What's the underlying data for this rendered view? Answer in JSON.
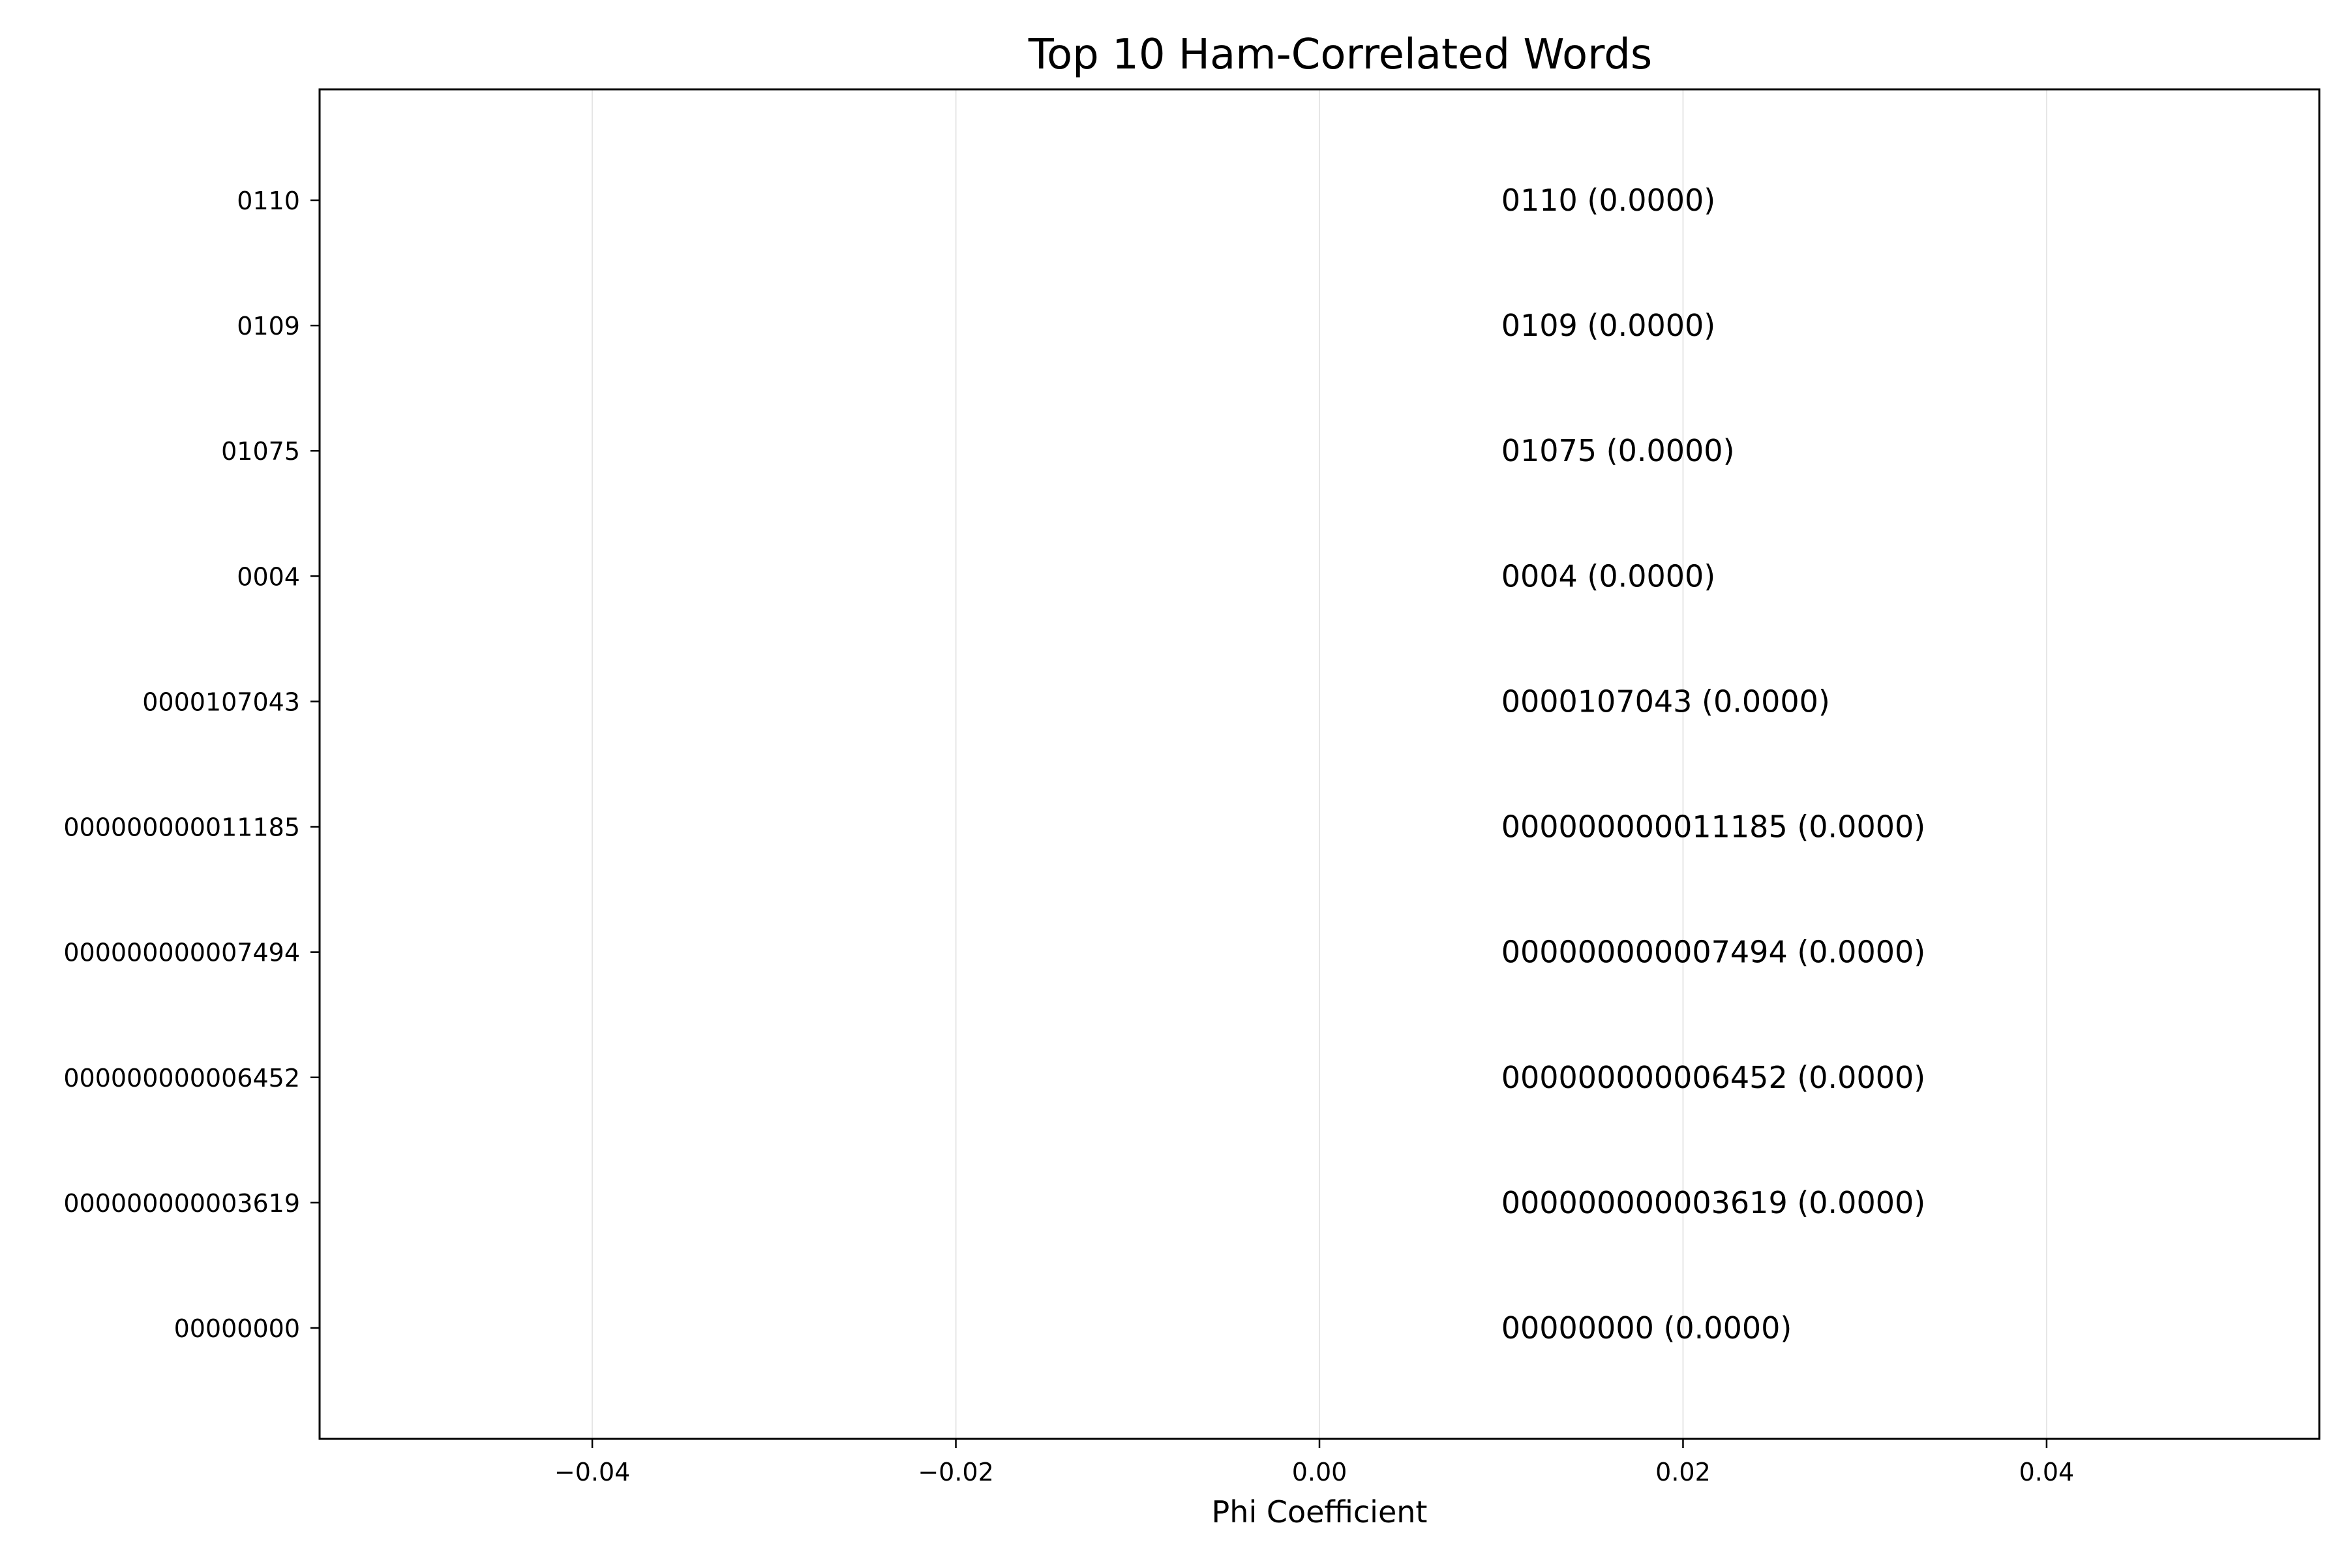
{
  "chart_data": {
    "type": "bar",
    "orientation": "horizontal",
    "title": "Top 10 Ham-Correlated Words",
    "xlabel": "Phi Coefficient",
    "ylabel": "",
    "xlim": [
      -0.055,
      0.055
    ],
    "x_ticks": [
      -0.04,
      -0.02,
      0.0,
      0.02,
      0.04
    ],
    "x_tick_labels": [
      "−0.04",
      "−0.02",
      "0.00",
      "0.02",
      "0.04"
    ],
    "grid": "vertical",
    "categories": [
      "0110",
      "0109",
      "01075",
      "0004",
      "0000107043",
      "000000000011185",
      "000000000007494",
      "000000000006452",
      "000000000003619",
      "00000000"
    ],
    "values": [
      0,
      0,
      0,
      0,
      0,
      0,
      0,
      0,
      0,
      0
    ],
    "annotations": [
      "0110 (0.0000)",
      "0109 (0.0000)",
      "01075 (0.0000)",
      "0004 (0.0000)",
      "0000107043 (0.0000)",
      "000000000011185 (0.0000)",
      "000000000007494 (0.0000)",
      "000000000006452 (0.0000)",
      "000000000003619 (0.0000)",
      "00000000 (0.0000)"
    ],
    "annotation_x": 0.01,
    "colors": {
      "bar": "#2ca02c",
      "grid": "#e6e6e6",
      "axis": "#000000"
    }
  }
}
